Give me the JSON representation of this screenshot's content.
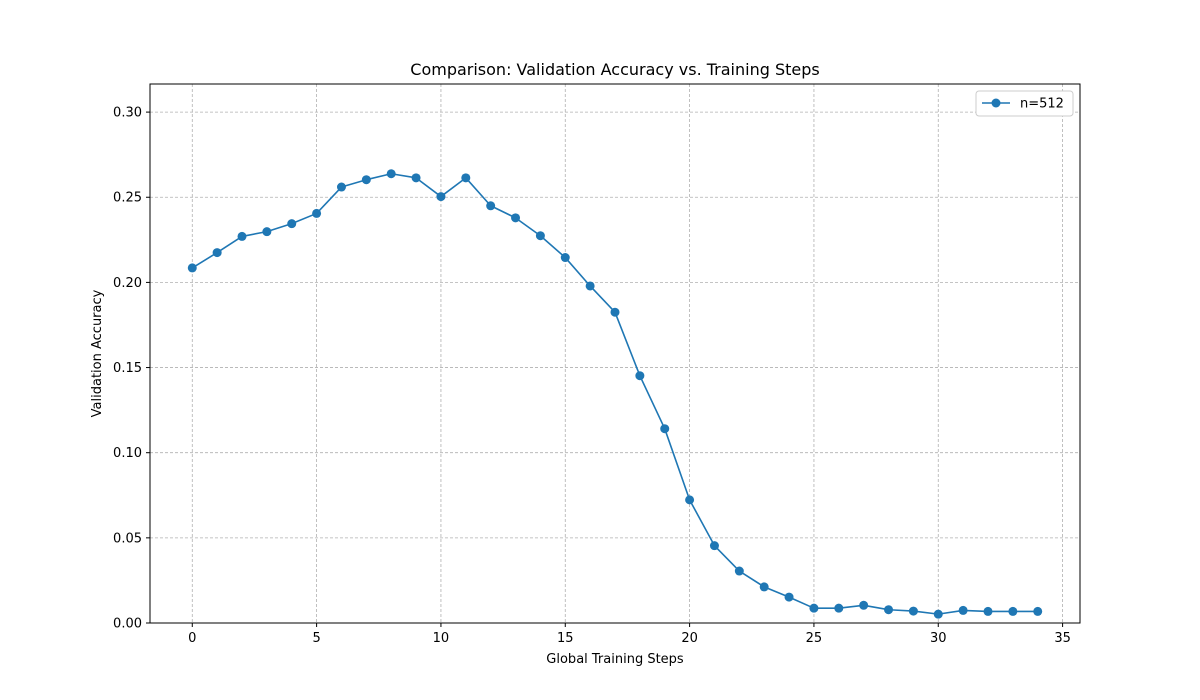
{
  "chart_data": {
    "type": "line",
    "title": "Comparison: Validation Accuracy vs. Training Steps",
    "xlabel": "Global Training Steps",
    "ylabel": "Validation Accuracy",
    "xlim": [
      -1.7,
      35.7
    ],
    "ylim": [
      0,
      0.3165
    ],
    "xticks": [
      0,
      5,
      10,
      15,
      20,
      25,
      30,
      35
    ],
    "xtick_labels": [
      "0",
      "5",
      "10",
      "15",
      "20",
      "25",
      "30",
      "35"
    ],
    "yticks": [
      0,
      0.05,
      0.1,
      0.15,
      0.2,
      0.25,
      0.3
    ],
    "ytick_labels": [
      "0.00",
      "0.05",
      "0.10",
      "0.15",
      "0.20",
      "0.25",
      "0.30"
    ],
    "grid": true,
    "legend_position": "top-right",
    "series": [
      {
        "name": "n=512",
        "color": "#1f77b4",
        "marker": "circle",
        "x": [
          0,
          1,
          2,
          3,
          4,
          5,
          6,
          7,
          8,
          9,
          10,
          11,
          12,
          13,
          14,
          15,
          16,
          17,
          18,
          19,
          20,
          21,
          22,
          23,
          24,
          25,
          26,
          27,
          28,
          29,
          30,
          31,
          32,
          33,
          34
        ],
        "y": [
          0.2085,
          0.2175,
          0.227,
          0.2298,
          0.2345,
          0.2405,
          0.256,
          0.2603,
          0.2638,
          0.2614,
          0.2504,
          0.2614,
          0.245,
          0.2379,
          0.2274,
          0.2146,
          0.1979,
          0.1825,
          0.1452,
          0.1141,
          0.0723,
          0.0454,
          0.0305,
          0.0212,
          0.0152,
          0.0087,
          0.0087,
          0.0104,
          0.0078,
          0.007,
          0.0052,
          0.0074,
          0.0068,
          0.0068,
          0.0068
        ]
      }
    ]
  }
}
